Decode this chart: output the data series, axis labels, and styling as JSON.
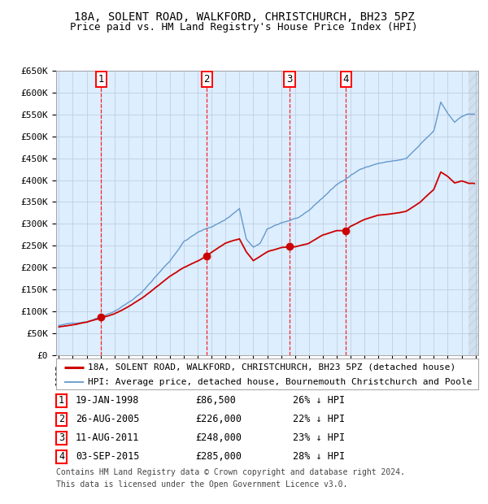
{
  "title_line1": "18A, SOLENT ROAD, WALKFORD, CHRISTCHURCH, BH23 5PZ",
  "title_line2": "Price paid vs. HM Land Registry's House Price Index (HPI)",
  "ylim": [
    0,
    650000
  ],
  "yticks": [
    0,
    50000,
    100000,
    150000,
    200000,
    250000,
    300000,
    350000,
    400000,
    450000,
    500000,
    550000,
    600000,
    650000
  ],
  "ytick_labels": [
    "£0",
    "£50K",
    "£100K",
    "£150K",
    "£200K",
    "£250K",
    "£300K",
    "£350K",
    "£400K",
    "£450K",
    "£500K",
    "£550K",
    "£600K",
    "£650K"
  ],
  "background_color": "#ffffff",
  "plot_bg_color": "#ddeeff",
  "grid_color": "#c0d0e0",
  "sale_color": "#cc0000",
  "hpi_color": "#6699cc",
  "sale_label": "18A, SOLENT ROAD, WALKFORD, CHRISTCHURCH, BH23 5PZ (detached house)",
  "hpi_label": "HPI: Average price, detached house, Bournemouth Christchurch and Poole",
  "purchases": [
    {
      "index": 1,
      "date": "19-JAN-1998",
      "price": 86500,
      "pct": "26% ↓ HPI",
      "year_float": 1998.05
    },
    {
      "index": 2,
      "date": "26-AUG-2005",
      "price": 226000,
      "pct": "22% ↓ HPI",
      "year_float": 2005.65
    },
    {
      "index": 3,
      "date": "11-AUG-2011",
      "price": 248000,
      "pct": "23% ↓ HPI",
      "year_float": 2011.61
    },
    {
      "index": 4,
      "date": "03-SEP-2015",
      "price": 285000,
      "pct": "28% ↓ HPI",
      "year_float": 2015.67
    }
  ],
  "footer_line1": "Contains HM Land Registry data © Crown copyright and database right 2024.",
  "footer_line2": "This data is licensed under the Open Government Licence v3.0.",
  "title_fontsize": 10,
  "subtitle_fontsize": 9,
  "tick_fontsize": 8,
  "legend_fontsize": 8,
  "table_fontsize": 8.5,
  "footer_fontsize": 7,
  "hpi_anchors_x": [
    1995.0,
    1996.0,
    1997.0,
    1998.0,
    1999.0,
    2000.0,
    2001.0,
    2002.0,
    2003.0,
    2004.0,
    2005.0,
    2006.0,
    2007.0,
    2008.0,
    2008.5,
    2009.0,
    2009.5,
    2010.0,
    2011.0,
    2011.5,
    2012.0,
    2012.5,
    2013.0,
    2014.0,
    2015.0,
    2016.0,
    2017.0,
    2018.0,
    2019.0,
    2020.0,
    2021.0,
    2022.0,
    2022.5,
    2023.0,
    2023.5,
    2024.0,
    2024.5
  ],
  "hpi_anchors_y": [
    68000,
    72000,
    78000,
    90000,
    105000,
    125000,
    148000,
    185000,
    220000,
    265000,
    285000,
    298000,
    315000,
    340000,
    270000,
    250000,
    260000,
    290000,
    305000,
    310000,
    315000,
    320000,
    330000,
    360000,
    390000,
    410000,
    430000,
    440000,
    445000,
    450000,
    480000,
    510000,
    575000,
    550000,
    530000,
    545000,
    550000
  ],
  "sale_anchors_x": [
    1995.0,
    1997.0,
    1998.05,
    1999.0,
    2000.0,
    2001.0,
    2002.0,
    2003.0,
    2004.0,
    2005.0,
    2005.65,
    2006.0,
    2007.0,
    2008.0,
    2008.5,
    2009.0,
    2009.5,
    2010.0,
    2011.0,
    2011.61,
    2012.0,
    2013.0,
    2014.0,
    2015.0,
    2015.67,
    2016.0,
    2017.0,
    2018.0,
    2019.0,
    2020.0,
    2021.0,
    2022.0,
    2022.5,
    2023.0,
    2023.5,
    2024.0,
    2024.5
  ],
  "sale_anchors_y": [
    65000,
    75000,
    86500,
    95000,
    110000,
    130000,
    155000,
    180000,
    200000,
    215000,
    226000,
    235000,
    255000,
    265000,
    235000,
    215000,
    225000,
    235000,
    245000,
    248000,
    247000,
    255000,
    275000,
    285000,
    285000,
    295000,
    310000,
    320000,
    325000,
    330000,
    350000,
    380000,
    420000,
    410000,
    395000,
    400000,
    395000
  ]
}
